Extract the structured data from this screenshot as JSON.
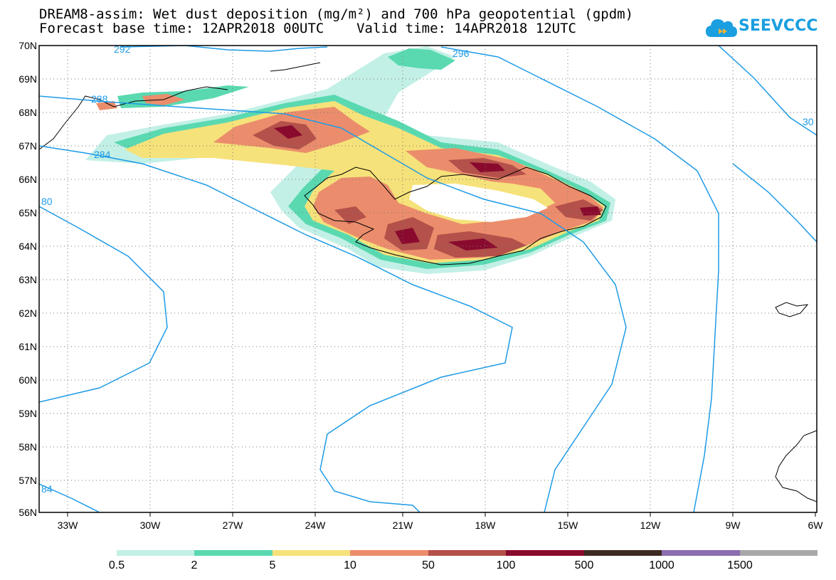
{
  "title": {
    "line1": "DREAM8-assim: Wet dust deposition (mg/m²) and 700 hPa geopotential (gpdm)",
    "line2": "Forecast base time: 12APR2018 00UTC    Valid time: 14APR2018 12UTC"
  },
  "logo": {
    "text": "SEEVCCC",
    "icon": "cloud-icon",
    "color": "#1a9fe0"
  },
  "map": {
    "lat_labels": [
      "70N",
      "69N",
      "68N",
      "67N",
      "66N",
      "65N",
      "64N",
      "63N",
      "62N",
      "61N",
      "60N",
      "59N",
      "58N",
      "57N",
      "56N"
    ],
    "lon_labels": [
      "33W",
      "30W",
      "27W",
      "24W",
      "21W",
      "18W",
      "15W",
      "12W",
      "9W",
      "6W"
    ],
    "contour_labels": [
      "292",
      "296",
      "288",
      "284",
      "80",
      "84",
      "30"
    ],
    "contour_color": "#1e9be6",
    "grid": "dotted"
  },
  "colorbar": {
    "ticks": [
      "0.5",
      "2",
      "5",
      "10",
      "50",
      "100",
      "500",
      "1000",
      "1500"
    ],
    "colors": [
      "#c3f0e6",
      "#5ad9b1",
      "#f6e27a",
      "#eb8d6c",
      "#b3514a",
      "#8a0a2e",
      "#3d2a20",
      "#8c6db0",
      "#a8a8a8"
    ]
  },
  "dust_colors": {
    "light": "#c3f0e6",
    "green": "#5ad9b1",
    "yellow": "#f6e27a",
    "salmon": "#eb8d6c",
    "brown": "#b3514a",
    "maroon": "#8a0a2e"
  }
}
